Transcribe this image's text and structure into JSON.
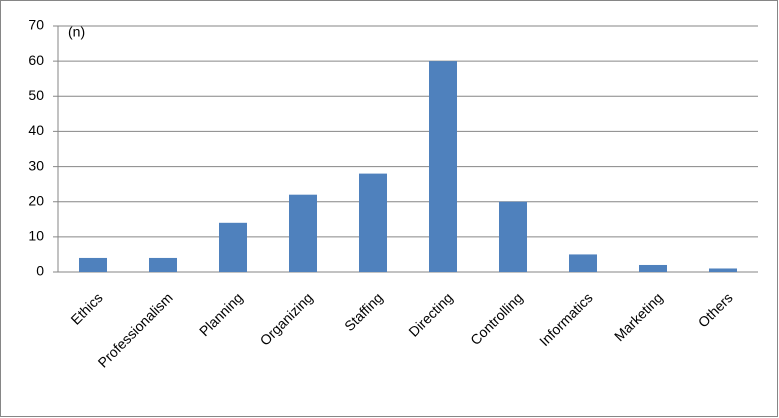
{
  "chart_data": {
    "type": "bar",
    "annotation": "(n)",
    "categories": [
      "Ethics",
      "Professionalism",
      "Planning",
      "Organizing",
      "Staffing",
      "Directing",
      "Controlling",
      "Informatics",
      "Marketing",
      "Others"
    ],
    "values": [
      4,
      4,
      14,
      22,
      28,
      60,
      20,
      5,
      2,
      1
    ],
    "color": "#4f81bd",
    "ylim": [
      0,
      70
    ],
    "yticks": [
      0,
      10,
      20,
      30,
      40,
      50,
      60,
      70
    ],
    "grid": true
  }
}
